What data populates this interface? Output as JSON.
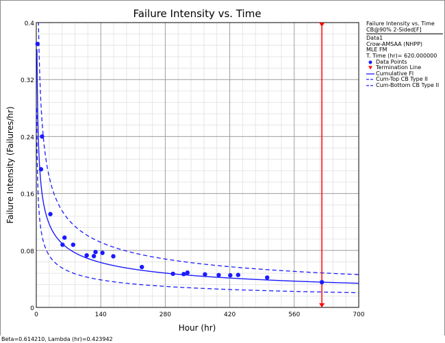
{
  "chart_data": {
    "type": "scatter",
    "title": "Failure Intensity vs. Time",
    "xlabel": "Hour (hr)",
    "ylabel": "Failure Intensity (Failures/hr)",
    "xlim": [
      0,
      700
    ],
    "ylim": [
      0,
      0.4
    ],
    "xticks": [
      0,
      140,
      280,
      420,
      560,
      700
    ],
    "yticks": [
      0,
      0.08,
      0.16,
      0.24,
      0.32,
      0.4
    ],
    "xtick_labels": [
      "0",
      "140",
      "280",
      "420",
      "560",
      "700"
    ],
    "ytick_labels": [
      "0",
      "0.08",
      "0.16",
      "0.24",
      "0.32",
      "0.4"
    ],
    "grid": true,
    "legend_position": "right",
    "model": {
      "beta": 0.61421,
      "lambda": 0.423942
    },
    "termination_time": 620,
    "series": [
      {
        "name": "Data Points",
        "kind": "points",
        "color": "#1a1aff",
        "points": [
          [
            2.7,
            0.37
          ],
          [
            10.3,
            0.194
          ],
          [
            12.5,
            0.24
          ],
          [
            30.6,
            0.131
          ],
          [
            57.0,
            0.088
          ],
          [
            61.3,
            0.098
          ],
          [
            80.0,
            0.088
          ],
          [
            109.5,
            0.0731
          ],
          [
            125.0,
            0.072
          ],
          [
            128.6,
            0.0778
          ],
          [
            143.6,
            0.0766
          ],
          [
            167.2,
            0.0718
          ],
          [
            229.2,
            0.0567
          ],
          [
            296.7,
            0.0472
          ],
          [
            320.0,
            0.0468
          ],
          [
            328.2,
            0.0488
          ],
          [
            366.2,
            0.0464
          ],
          [
            396.0,
            0.0454
          ],
          [
            421.1,
            0.0451
          ],
          [
            438.2,
            0.0456
          ],
          [
            501.2,
            0.0419
          ],
          [
            620.0,
            0.0354
          ]
        ]
      },
      {
        "name": "Termination Line",
        "kind": "vline",
        "color": "#ff0000",
        "x": 620
      },
      {
        "name": "Cumulative FI",
        "kind": "curve",
        "color": "#1a1aff",
        "style": "solid"
      },
      {
        "name": "Cum-Top CB Type II",
        "kind": "curve",
        "color": "#1a1aff",
        "style": "dashed"
      },
      {
        "name": "Cum-Bottom CB Type II",
        "kind": "curve",
        "color": "#1a1aff",
        "style": "dashed"
      }
    ]
  },
  "legend": {
    "title_line1": "Failure Intensity vs. Time",
    "title_line2": "CB@90% 2-Sided[F]",
    "data_name": "Data1",
    "model": "Crow-AMSAA (NHPP)",
    "method": "MLE FM",
    "term_time": "T. Time (hr)= 620.000000",
    "items": [
      "Data Points",
      "Termination Line",
      "Cumulative FI",
      "Cum-Top CB Type II",
      "Cum-Bottom CB Type II"
    ]
  },
  "status_text": "Beta=0.614210, Lambda (hr)=0.423942"
}
